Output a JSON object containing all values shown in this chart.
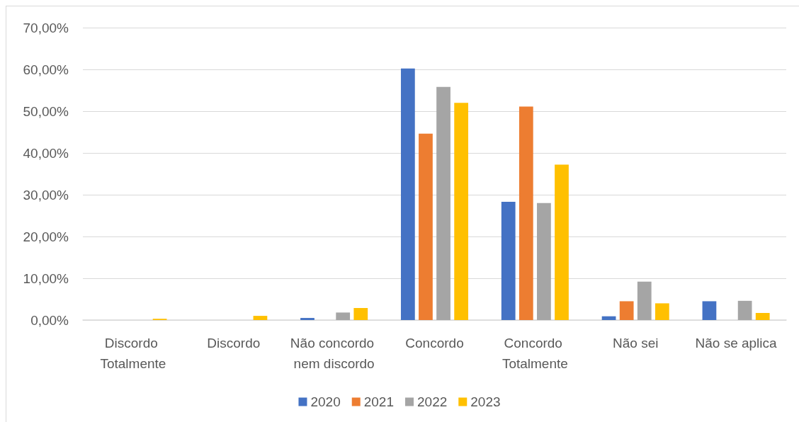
{
  "chart_data": {
    "type": "bar",
    "categories": [
      "Discordo Totalmente",
      "Discordo",
      "Não concordo nem discordo",
      "Concordo",
      "Concordo Totalmente",
      "Não sei",
      "Não se aplica"
    ],
    "series": [
      {
        "name": "2020",
        "color": "#4472c4",
        "values": [
          null,
          null,
          0.5,
          60.2,
          28.3,
          0.9,
          4.5
        ]
      },
      {
        "name": "2021",
        "color": "#ed7d31",
        "values": [
          null,
          null,
          null,
          44.6,
          51.1,
          4.5,
          null
        ]
      },
      {
        "name": "2022",
        "color": "#a5a5a5",
        "values": [
          null,
          null,
          1.8,
          55.8,
          28.0,
          9.2,
          4.6
        ]
      },
      {
        "name": "2023",
        "color": "#ffc000",
        "values": [
          0.3,
          1.0,
          2.9,
          52.0,
          37.2,
          4.0,
          1.7
        ]
      }
    ],
    "ylim": [
      0,
      70
    ],
    "yticks": [
      {
        "value": 0,
        "label": "0,00%"
      },
      {
        "value": 10,
        "label": "10,00%"
      },
      {
        "value": 20,
        "label": "20,00%"
      },
      {
        "value": 30,
        "label": "30,00%"
      },
      {
        "value": 40,
        "label": "40,00%"
      },
      {
        "value": 50,
        "label": "50,00%"
      },
      {
        "value": 60,
        "label": "60,00%"
      },
      {
        "value": 70,
        "label": "70,00%"
      }
    ],
    "grid": "y",
    "legend": "bottom"
  }
}
